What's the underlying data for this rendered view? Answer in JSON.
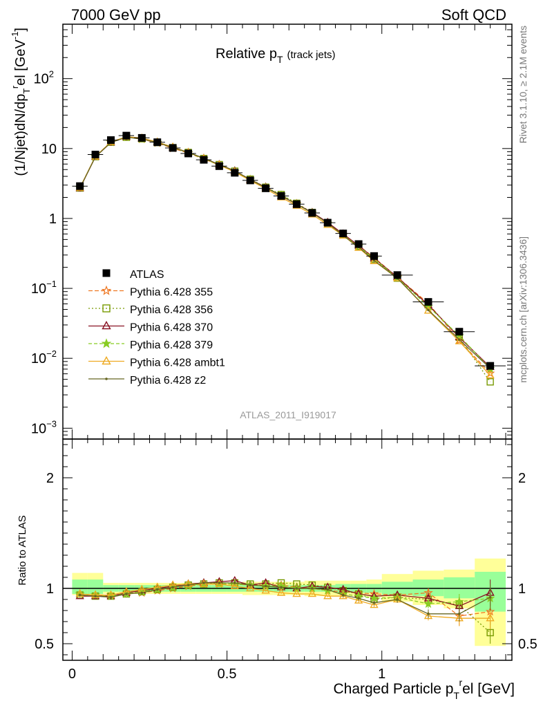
{
  "header": {
    "left": "7000 GeV pp",
    "right": "Soft QCD",
    "side_top": "Rivet 3.1.10, ≥ 2.1M events",
    "side_bottom": "mcplots.cern.ch [arXiv:1306.3436]"
  },
  "main_panel": {
    "title_main": "Relative p",
    "title_sub": "T",
    "title_tail": "(track jets)",
    "watermark": "ATLAS_2011_I919017",
    "ylabel_a": "(1/Njet)dN/dp",
    "ylabel_sub": "T",
    "ylabel_sup": "r",
    "ylabel_b": "el [GeV",
    "ylabel_exp": "-1",
    "ylabel_c": "]",
    "y_ticks": [
      {
        "value": 0.001,
        "label": "10",
        "exp": "−3"
      },
      {
        "value": 0.01,
        "label": "10",
        "exp": "−2"
      },
      {
        "value": 0.1,
        "label": "10",
        "exp": "−1"
      },
      {
        "value": 1,
        "label": "1",
        "exp": ""
      },
      {
        "value": 10,
        "label": "10",
        "exp": ""
      },
      {
        "value": 100,
        "label": "10",
        "exp": "2"
      }
    ]
  },
  "ratio_panel": {
    "ylabel": "Ratio to ATLAS",
    "y_ticks": [
      {
        "value": 0.5,
        "label": "0.5"
      },
      {
        "value": 1,
        "label": "1"
      },
      {
        "value": 2,
        "label": "2"
      }
    ]
  },
  "x_axis": {
    "label_a": "Charged Particle p",
    "label_sub": "T",
    "label_sup": "r",
    "label_b": "el [GeV]",
    "ticks": [
      {
        "value": 0,
        "label": "0"
      },
      {
        "value": 0.5,
        "label": "0.5"
      },
      {
        "value": 1,
        "label": "1"
      }
    ]
  },
  "legend": {
    "entries": [
      {
        "label": "ATLAS",
        "color": "#000000",
        "marker": "square-filled",
        "dash": "none"
      },
      {
        "label": "Pythia 6.428 355",
        "color": "#ee7722",
        "marker": "star-open",
        "dash": "6,3"
      },
      {
        "label": "Pythia 6.428 356",
        "color": "#779900",
        "marker": "square-open",
        "dash": "2,3"
      },
      {
        "label": "Pythia 6.428 370",
        "color": "#881122",
        "marker": "triangle-open",
        "dash": ""
      },
      {
        "label": "Pythia 6.428 379",
        "color": "#88cc22",
        "marker": "star-filled",
        "dash": "5,3"
      },
      {
        "label": "Pythia 6.428 ambt1",
        "color": "#eeaa22",
        "marker": "triangle-open",
        "dash": ""
      },
      {
        "label": "Pythia 6.428 z2",
        "color": "#666622",
        "marker": "dot",
        "dash": ""
      }
    ]
  },
  "chart_data": [
    {
      "type": "scatter",
      "panel": "main",
      "yscale": "log",
      "xlim": [
        -0.03,
        1.42
      ],
      "ylim": [
        0.0007,
        600
      ],
      "x": [
        0.025,
        0.075,
        0.125,
        0.175,
        0.225,
        0.275,
        0.325,
        0.375,
        0.425,
        0.475,
        0.525,
        0.575,
        0.625,
        0.675,
        0.725,
        0.775,
        0.825,
        0.875,
        0.925,
        0.975,
        1.05,
        1.15,
        1.25,
        1.35
      ],
      "x_err": [
        0.025,
        0.025,
        0.025,
        0.025,
        0.025,
        0.025,
        0.025,
        0.025,
        0.025,
        0.025,
        0.025,
        0.025,
        0.025,
        0.025,
        0.025,
        0.025,
        0.025,
        0.025,
        0.025,
        0.025,
        0.05,
        0.05,
        0.05,
        0.05
      ],
      "series": [
        {
          "name": "ATLAS",
          "values": [
            2.9,
            8.2,
            13.2,
            15.3,
            14.2,
            12.3,
            10.2,
            8.5,
            6.9,
            5.6,
            4.5,
            3.5,
            2.7,
            2.1,
            1.6,
            1.2,
            0.87,
            0.61,
            0.43,
            0.29,
            0.155,
            0.064,
            0.024,
            0.0078
          ]
        },
        {
          "name": "Pythia 6.428 355",
          "values": [
            2.75,
            7.7,
            12.4,
            14.6,
            13.6,
            12.0,
            10.1,
            8.6,
            7.1,
            5.8,
            4.65,
            3.6,
            2.8,
            2.15,
            1.63,
            1.2,
            0.85,
            0.59,
            0.41,
            0.275,
            0.145,
            0.061,
            0.018,
            0.0061
          ]
        },
        {
          "name": "Pythia 6.428 356",
          "values": [
            2.72,
            7.65,
            12.3,
            14.5,
            13.8,
            12.2,
            10.3,
            8.8,
            7.2,
            5.9,
            4.75,
            3.65,
            2.8,
            2.2,
            1.65,
            1.22,
            0.86,
            0.59,
            0.4,
            0.26,
            0.14,
            0.058,
            0.02,
            0.0046
          ]
        },
        {
          "name": "Pythia 6.428 370",
          "values": [
            2.7,
            7.6,
            12.2,
            14.6,
            13.9,
            12.3,
            10.4,
            8.8,
            7.25,
            5.9,
            4.8,
            3.6,
            2.8,
            2.1,
            1.6,
            1.22,
            0.88,
            0.6,
            0.41,
            0.27,
            0.145,
            0.058,
            0.02,
            0.0075
          ]
        },
        {
          "name": "Pythia 6.428 379",
          "values": [
            2.74,
            7.7,
            12.3,
            14.6,
            13.8,
            12.2,
            10.3,
            8.7,
            7.15,
            5.8,
            4.7,
            3.6,
            2.75,
            2.15,
            1.6,
            1.2,
            0.85,
            0.58,
            0.4,
            0.265,
            0.142,
            0.055,
            0.021,
            0.0071
          ]
        },
        {
          "name": "Pythia 6.428 ambt1",
          "values": [
            2.75,
            7.7,
            12.4,
            14.8,
            14.1,
            12.4,
            10.5,
            8.8,
            7.2,
            5.85,
            4.6,
            3.5,
            2.65,
            2.0,
            1.52,
            1.14,
            0.81,
            0.57,
            0.38,
            0.245,
            0.14,
            0.048,
            0.0175,
            0.0057
          ]
        },
        {
          "name": "Pythia 6.428 z2",
          "values": [
            2.72,
            7.6,
            12.2,
            14.5,
            13.7,
            12.2,
            10.3,
            8.8,
            7.25,
            5.9,
            4.8,
            3.6,
            2.75,
            2.12,
            1.6,
            1.2,
            0.86,
            0.57,
            0.39,
            0.25,
            0.14,
            0.049,
            0.0185,
            0.0072
          ]
        }
      ]
    },
    {
      "type": "scatter",
      "panel": "ratio",
      "xlim": [
        -0.03,
        1.42
      ],
      "ylim": [
        0.35,
        2.35
      ],
      "reference_line": 1,
      "band_outer": [
        [
          0.94,
          1.14
        ],
        [
          0.94,
          1.14
        ],
        [
          0.95,
          1.05
        ],
        [
          0.95,
          1.05
        ],
        [
          0.95,
          1.05
        ],
        [
          0.95,
          1.05
        ],
        [
          0.95,
          1.05
        ],
        [
          0.95,
          1.05
        ],
        [
          0.95,
          1.05
        ],
        [
          0.95,
          1.05
        ],
        [
          0.95,
          1.05
        ],
        [
          0.94,
          1.06
        ],
        [
          0.94,
          1.06
        ],
        [
          0.94,
          1.06
        ],
        [
          0.94,
          1.06
        ],
        [
          0.93,
          1.07
        ],
        [
          0.93,
          1.07
        ],
        [
          0.93,
          1.07
        ],
        [
          0.93,
          1.07
        ],
        [
          0.92,
          1.08
        ],
        [
          0.88,
          1.13
        ],
        [
          0.85,
          1.16
        ],
        [
          0.82,
          1.17
        ],
        [
          0.48,
          1.27
        ]
      ],
      "band_inner": [
        [
          0.95,
          1.08
        ],
        [
          0.95,
          1.08
        ],
        [
          0.97,
          1.03
        ],
        [
          0.97,
          1.03
        ],
        [
          0.97,
          1.03
        ],
        [
          0.97,
          1.03
        ],
        [
          0.97,
          1.03
        ],
        [
          0.97,
          1.03
        ],
        [
          0.97,
          1.03
        ],
        [
          0.97,
          1.03
        ],
        [
          0.97,
          1.03
        ],
        [
          0.97,
          1.03
        ],
        [
          0.97,
          1.03
        ],
        [
          0.97,
          1.03
        ],
        [
          0.97,
          1.03
        ],
        [
          0.97,
          1.03
        ],
        [
          0.97,
          1.03
        ],
        [
          0.96,
          1.04
        ],
        [
          0.96,
          1.04
        ],
        [
          0.96,
          1.04
        ],
        [
          0.94,
          1.06
        ],
        [
          0.93,
          1.08
        ],
        [
          0.91,
          1.1
        ],
        [
          0.79,
          1.15
        ]
      ],
      "series": [
        {
          "name": "Pythia 6.428 355",
          "values": [
            0.95,
            0.94,
            0.94,
            0.95,
            0.96,
            0.98,
            1.0,
            1.02,
            1.04,
            1.04,
            1.04,
            1.03,
            1.03,
            1.03,
            1.01,
            1.0,
            0.98,
            0.97,
            0.96,
            0.95,
            0.94,
            0.96,
            0.75,
            0.79
          ],
          "errors": [
            0.01,
            0.01,
            0.01,
            0.01,
            0.01,
            0.01,
            0.01,
            0.01,
            0.01,
            0.01,
            0.01,
            0.01,
            0.01,
            0.01,
            0.01,
            0.01,
            0.01,
            0.01,
            0.02,
            0.02,
            0.02,
            0.04,
            0.09,
            0.12
          ]
        },
        {
          "name": "Pythia 6.428 356",
          "values": [
            0.94,
            0.93,
            0.93,
            0.95,
            0.97,
            0.99,
            1.01,
            1.03,
            1.04,
            1.05,
            1.05,
            1.04,
            1.04,
            1.05,
            1.04,
            1.03,
            1.01,
            0.98,
            0.95,
            0.9,
            0.92,
            0.9,
            0.85,
            0.6
          ],
          "errors": [
            0.01,
            0.01,
            0.01,
            0.01,
            0.01,
            0.01,
            0.01,
            0.01,
            0.01,
            0.01,
            0.01,
            0.01,
            0.01,
            0.01,
            0.01,
            0.01,
            0.01,
            0.01,
            0.02,
            0.02,
            0.02,
            0.04,
            0.07,
            0.1
          ]
        },
        {
          "name": "Pythia 6.428 370",
          "values": [
            0.93,
            0.93,
            0.93,
            0.96,
            0.98,
            1.0,
            1.02,
            1.04,
            1.05,
            1.06,
            1.07,
            1.03,
            1.05,
            1.01,
            1.0,
            1.02,
            1.01,
            0.99,
            0.95,
            0.93,
            0.94,
            0.91,
            0.84,
            0.96
          ],
          "errors": [
            0.01,
            0.01,
            0.01,
            0.01,
            0.01,
            0.01,
            0.01,
            0.01,
            0.01,
            0.01,
            0.01,
            0.01,
            0.01,
            0.01,
            0.01,
            0.01,
            0.01,
            0.02,
            0.02,
            0.02,
            0.03,
            0.05,
            0.08,
            0.12
          ]
        },
        {
          "name": "Pythia 6.428 379",
          "values": [
            0.95,
            0.94,
            0.93,
            0.95,
            0.97,
            0.99,
            1.01,
            1.03,
            1.04,
            1.04,
            1.04,
            1.03,
            1.02,
            1.02,
            1.0,
            1.0,
            0.98,
            0.95,
            0.93,
            0.91,
            0.92,
            0.86,
            0.88,
            0.91
          ],
          "errors": [
            0.01,
            0.01,
            0.01,
            0.01,
            0.01,
            0.01,
            0.01,
            0.01,
            0.01,
            0.01,
            0.01,
            0.01,
            0.01,
            0.01,
            0.01,
            0.01,
            0.01,
            0.02,
            0.02,
            0.02,
            0.03,
            0.04,
            0.07,
            0.1
          ]
        },
        {
          "name": "Pythia 6.428 ambt1",
          "values": [
            0.95,
            0.94,
            0.94,
            0.97,
            0.99,
            1.01,
            1.03,
            1.04,
            1.04,
            1.04,
            1.02,
            1.0,
            0.98,
            0.96,
            0.95,
            0.95,
            0.93,
            0.93,
            0.89,
            0.85,
            0.9,
            0.75,
            0.73,
            0.73
          ],
          "errors": [
            0.01,
            0.01,
            0.01,
            0.01,
            0.01,
            0.01,
            0.01,
            0.01,
            0.01,
            0.01,
            0.01,
            0.01,
            0.01,
            0.01,
            0.01,
            0.01,
            0.01,
            0.02,
            0.02,
            0.02,
            0.03,
            0.04,
            0.07,
            0.1
          ]
        },
        {
          "name": "Pythia 6.428 z2",
          "values": [
            0.94,
            0.93,
            0.92,
            0.95,
            0.96,
            0.99,
            1.01,
            1.03,
            1.05,
            1.05,
            1.05,
            1.03,
            1.02,
            1.01,
            1.0,
            1.0,
            0.99,
            0.94,
            0.91,
            0.87,
            0.9,
            0.77,
            0.77,
            0.92
          ],
          "errors": [
            0.01,
            0.01,
            0.01,
            0.01,
            0.01,
            0.01,
            0.01,
            0.01,
            0.01,
            0.01,
            0.01,
            0.01,
            0.01,
            0.01,
            0.01,
            0.01,
            0.01,
            0.02,
            0.02,
            0.02,
            0.03,
            0.04,
            0.07,
            0.12
          ]
        }
      ]
    }
  ]
}
